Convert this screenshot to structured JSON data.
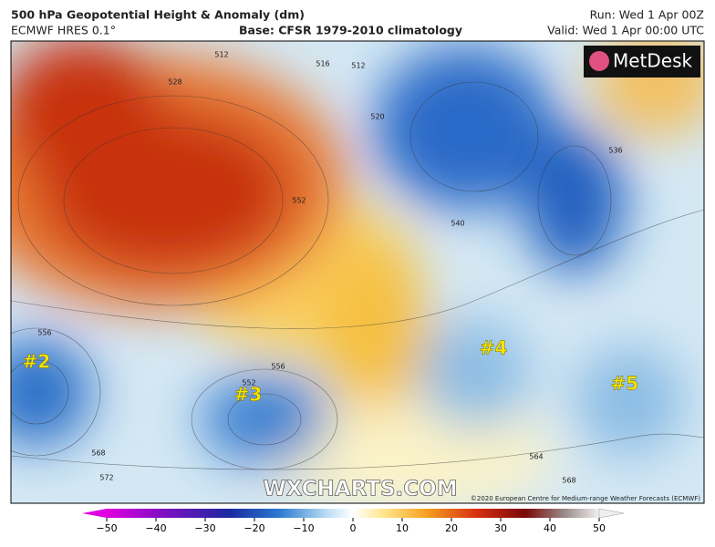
{
  "header": {
    "title": "500 hPa Geopotential Height & Anomaly (dm)",
    "model": "ECMWF HRES 0.1°",
    "base": "Base: CFSR 1979-2010 climatology",
    "run": "Run: Wed 1 Apr 00Z",
    "valid": "Valid: Wed 1 Apr 00:00 UTC"
  },
  "map": {
    "logo": "MetDesk",
    "labels": [
      "#2",
      "#3",
      "#4",
      "#5"
    ],
    "contours": [
      512,
      512,
      516,
      520,
      528,
      536,
      540,
      552,
      552,
      556,
      556,
      568,
      572,
      564,
      568
    ],
    "watermark": "WXCHARTS.COM",
    "credit": "©2020 European Centre for Medium-range Weather Forecasts (ECMWF)"
  },
  "colorbar": {
    "ticks": [
      {
        "value": -50,
        "label": "−50"
      },
      {
        "value": -40,
        "label": "−40"
      },
      {
        "value": -30,
        "label": "−30"
      },
      {
        "value": -20,
        "label": "−20"
      },
      {
        "value": -10,
        "label": "−10"
      },
      0,
      10,
      20,
      30,
      40,
      50
    ]
  }
}
